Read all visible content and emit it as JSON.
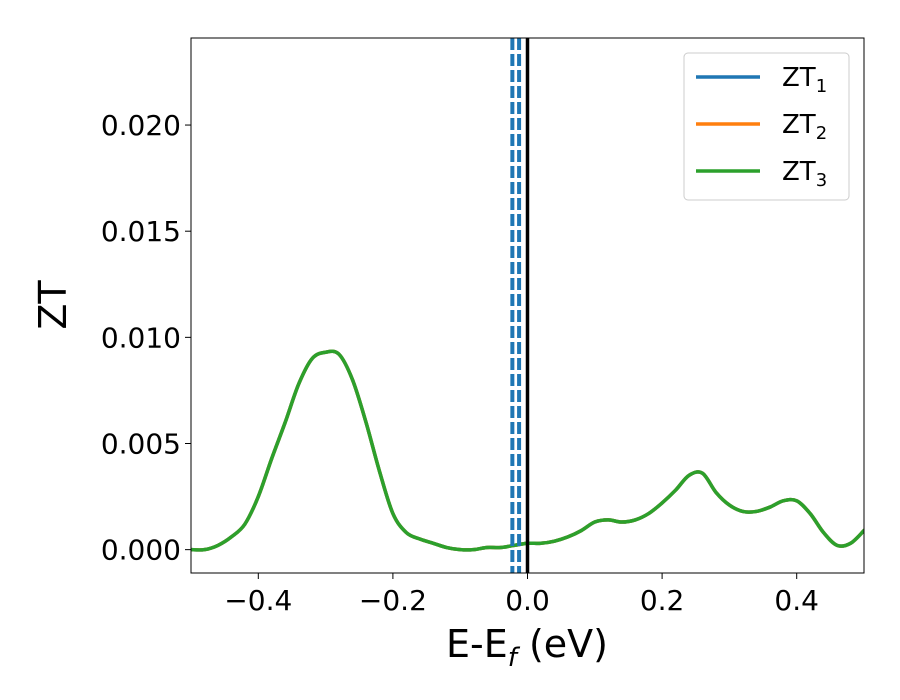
{
  "chart_data": {
    "type": "line",
    "title": "",
    "xlabel": {
      "main": "E-E",
      "sub": "f",
      "suffix": " (eV)"
    },
    "ylabel": "ZT",
    "xlim": [
      -0.5,
      0.5
    ],
    "ylim": [
      -0.0011,
      0.0241
    ],
    "xticks": [
      -0.4,
      -0.2,
      0.0,
      0.2,
      0.4
    ],
    "xtick_labels": [
      "−0.4",
      "−0.2",
      "0.0",
      "0.2",
      "0.4"
    ],
    "yticks": [
      0.0,
      0.005,
      0.01,
      0.015,
      0.02
    ],
    "ytick_labels": [
      "0.000",
      "0.005",
      "0.010",
      "0.015",
      "0.020"
    ],
    "legend_position": "top-right",
    "vertical_lines": [
      {
        "x": 0.0,
        "color": "#000000",
        "style": "solid"
      },
      {
        "x": -0.0125,
        "color": "#1f77b4",
        "style": "dashed"
      },
      {
        "x": -0.0225,
        "color": "#1f77b4",
        "style": "dashed"
      }
    ],
    "x": [
      -0.5,
      -0.48,
      -0.46,
      -0.44,
      -0.42,
      -0.4,
      -0.38,
      -0.36,
      -0.34,
      -0.32,
      -0.3,
      -0.28,
      -0.26,
      -0.24,
      -0.22,
      -0.2,
      -0.18,
      -0.16,
      -0.14,
      -0.12,
      -0.1,
      -0.08,
      -0.06,
      -0.04,
      -0.02,
      0.0,
      0.02,
      0.04,
      0.06,
      0.08,
      0.1,
      0.12,
      0.14,
      0.16,
      0.18,
      0.2,
      0.22,
      0.24,
      0.26,
      0.28,
      0.3,
      0.32,
      0.34,
      0.36,
      0.38,
      0.4,
      0.42,
      0.44,
      0.46,
      0.48,
      0.5
    ],
    "series": [
      {
        "name": "ZT",
        "sub": "1",
        "color": "#1f77b4",
        "values": [
          0.0,
          0.0,
          0.0002,
          0.0006,
          0.0012,
          0.0025,
          0.0043,
          0.006,
          0.0078,
          0.009,
          0.0093,
          0.0092,
          0.008,
          0.006,
          0.0037,
          0.0017,
          0.0008,
          0.0005,
          0.0003,
          0.0001,
          0.0,
          0.0,
          0.0001,
          0.0001,
          0.0002,
          0.0003,
          0.0003,
          0.0004,
          0.0006,
          0.0009,
          0.0013,
          0.0014,
          0.0013,
          0.0014,
          0.0017,
          0.0022,
          0.0028,
          0.0035,
          0.0036,
          0.0027,
          0.0021,
          0.0018,
          0.0018,
          0.002,
          0.0023,
          0.0023,
          0.0017,
          0.0008,
          0.0002,
          0.0003,
          0.0009
        ]
      },
      {
        "name": "ZT",
        "sub": "2",
        "color": "#ff7f0e",
        "values": [
          0.0,
          0.0,
          0.0002,
          0.0006,
          0.0012,
          0.0025,
          0.0043,
          0.006,
          0.0078,
          0.009,
          0.0093,
          0.0092,
          0.008,
          0.006,
          0.0037,
          0.0017,
          0.0008,
          0.0005,
          0.0003,
          0.0001,
          0.0,
          0.0,
          0.0001,
          0.0001,
          0.0002,
          0.0003,
          0.0003,
          0.0004,
          0.0006,
          0.0009,
          0.0013,
          0.0014,
          0.0013,
          0.0014,
          0.0017,
          0.0022,
          0.0028,
          0.0035,
          0.0036,
          0.0027,
          0.0021,
          0.0018,
          0.0018,
          0.002,
          0.0023,
          0.0023,
          0.0017,
          0.0008,
          0.0002,
          0.0003,
          0.0009
        ]
      },
      {
        "name": "ZT",
        "sub": "3",
        "color": "#2ca02c",
        "values": [
          0.0,
          0.0,
          0.0002,
          0.0006,
          0.0012,
          0.0025,
          0.0043,
          0.006,
          0.0078,
          0.009,
          0.0093,
          0.0092,
          0.008,
          0.006,
          0.0037,
          0.0017,
          0.0008,
          0.0005,
          0.0003,
          0.0001,
          0.0,
          0.0,
          0.0001,
          0.0001,
          0.0002,
          0.0003,
          0.0003,
          0.0004,
          0.0006,
          0.0009,
          0.0013,
          0.0014,
          0.0013,
          0.0014,
          0.0017,
          0.0022,
          0.0028,
          0.0035,
          0.0036,
          0.0027,
          0.0021,
          0.0018,
          0.0018,
          0.002,
          0.0023,
          0.0023,
          0.0017,
          0.0008,
          0.0002,
          0.0003,
          0.0009
        ]
      }
    ]
  }
}
